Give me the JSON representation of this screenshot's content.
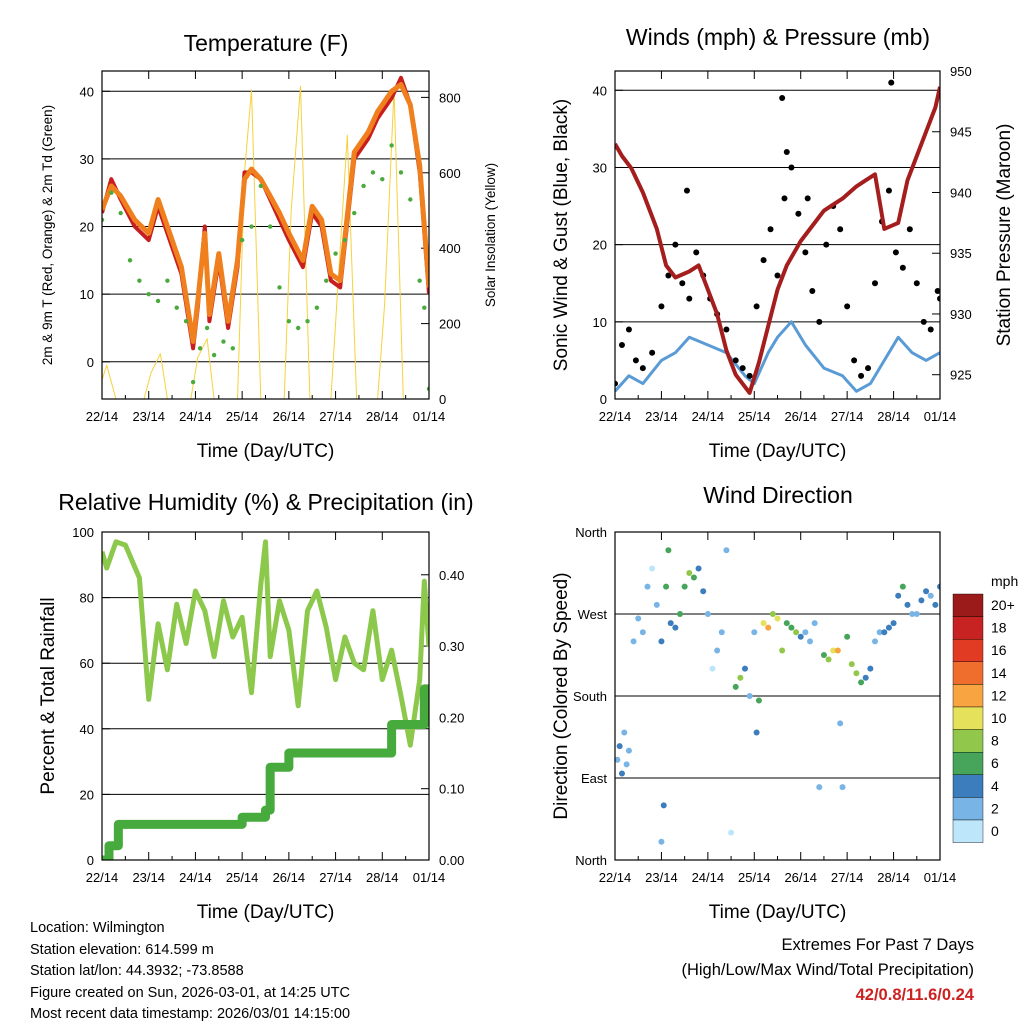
{
  "colors": {
    "temp_red": "#c81e1e",
    "temp_orange": "#f07f1e",
    "dewpoint_green": "#4aaa3c",
    "solar_yellow": "#f5d23c",
    "wind_blue": "#5a9bd5",
    "gust_black": "#000000",
    "pressure_maroon": "#a51e1e",
    "rh_green": "#8cc84b",
    "precip_green": "#46aa3c",
    "extremes_red": "#cc2222"
  },
  "chart_data": [
    {
      "id": "temperature",
      "type": "line",
      "title": "Temperature (F)",
      "xlabel": "Time (Day/UTC)",
      "ylabel": "2m & 9m T (Red, Orange) & 2m Td (Green)",
      "y2label": "Solar Insolation (Yellow)",
      "xticklabels": [
        "22/14",
        "23/14",
        "24/14",
        "25/14",
        "26/14",
        "27/14",
        "28/14",
        "01/14"
      ],
      "xlim": [
        0,
        7
      ],
      "ylim": [
        -5.5,
        43
      ],
      "yticks": [
        0,
        10,
        20,
        30,
        40
      ],
      "y2lim": [
        0,
        870
      ],
      "y2ticks": [
        0,
        200,
        400,
        600,
        800
      ],
      "grid_y": [
        0,
        10,
        20,
        30,
        40
      ],
      "series": [
        {
          "name": "2m T",
          "style": "line",
          "color": "#c81e1e",
          "x": [
            0,
            0.2,
            0.4,
            0.7,
            1.0,
            1.2,
            1.4,
            1.7,
            1.95,
            2.05,
            2.2,
            2.3,
            2.5,
            2.7,
            2.9,
            3.05,
            3.2,
            3.4,
            3.6,
            3.8,
            4.0,
            4.3,
            4.5,
            4.7,
            4.9,
            5.1,
            5.4,
            5.7,
            5.9,
            6.2,
            6.4,
            6.6,
            6.8,
            7.0
          ],
          "values": [
            22,
            27,
            24,
            20,
            18,
            23,
            19,
            13,
            2,
            8,
            20,
            6,
            15,
            5,
            14,
            28,
            28,
            27,
            24,
            21,
            18,
            14,
            22,
            20,
            12,
            11,
            30,
            33,
            36,
            39,
            42,
            38,
            28,
            10
          ]
        },
        {
          "name": "9m T",
          "style": "line",
          "color": "#f07f1e",
          "x": [
            0,
            0.2,
            0.4,
            0.7,
            1.0,
            1.2,
            1.4,
            1.7,
            1.95,
            2.05,
            2.2,
            2.3,
            2.5,
            2.7,
            2.9,
            3.05,
            3.2,
            3.4,
            3.6,
            3.8,
            4.0,
            4.3,
            4.5,
            4.7,
            4.9,
            5.1,
            5.4,
            5.7,
            5.9,
            6.2,
            6.4,
            6.6,
            6.8,
            7.0
          ],
          "values": [
            22.5,
            26,
            24.5,
            21,
            19,
            24,
            20,
            14,
            3,
            9,
            19,
            7,
            16,
            6,
            15,
            27,
            28.5,
            27,
            24.5,
            22,
            19,
            15,
            23,
            21,
            13,
            12,
            31,
            34,
            37,
            40,
            41,
            38,
            29,
            11
          ]
        },
        {
          "name": "2m Td",
          "style": "dots",
          "color": "#4aaa3c",
          "x": [
            0,
            0.2,
            0.4,
            0.6,
            0.8,
            1.0,
            1.2,
            1.4,
            1.6,
            1.8,
            1.95,
            2.1,
            2.25,
            2.4,
            2.6,
            2.8,
            3.0,
            3.2,
            3.4,
            3.6,
            3.8,
            4.0,
            4.2,
            4.4,
            4.6,
            4.8,
            5.0,
            5.2,
            5.4,
            5.6,
            5.8,
            6.0,
            6.2,
            6.4,
            6.6,
            6.8,
            6.9,
            7.0
          ],
          "values": [
            21,
            25,
            22,
            15,
            12,
            10,
            9,
            12,
            8,
            6,
            -3,
            2,
            5,
            1,
            3,
            2,
            18,
            20,
            26,
            20,
            11,
            6,
            5,
            6,
            8,
            12,
            16,
            18,
            22,
            26,
            28,
            27,
            32,
            28,
            24,
            12,
            8,
            -4
          ]
        },
        {
          "name": "Solar Insolation",
          "style": "line",
          "color": "#f5d23c",
          "axis": "y2",
          "x": [
            0,
            0.1,
            0.3,
            0.9,
            1.05,
            1.25,
            1.4,
            1.9,
            2.05,
            2.25,
            2.4,
            2.9,
            3.05,
            3.2,
            3.4,
            3.9,
            4.05,
            4.25,
            4.45,
            4.9,
            5.05,
            5.25,
            5.45,
            5.9,
            6.05,
            6.25,
            6.45,
            7.0
          ],
          "values": [
            50,
            90,
            0,
            0,
            70,
            120,
            0,
            0,
            110,
            160,
            0,
            0,
            600,
            820,
            0,
            0,
            500,
            830,
            0,
            0,
            300,
            700,
            0,
            0,
            250,
            820,
            0,
            0
          ]
        }
      ]
    },
    {
      "id": "winds",
      "type": "scatter",
      "title": "Winds (mph) & Pressure (mb)",
      "xlabel": "Time (Day/UTC)",
      "ylabel": "Sonic Wind & Gust (Blue, Black)",
      "y2label": "Station Pressure (Maroon)",
      "xticklabels": [
        "22/14",
        "23/14",
        "24/14",
        "25/14",
        "26/14",
        "27/14",
        "28/14",
        "01/14"
      ],
      "xlim": [
        0,
        7
      ],
      "ylim": [
        0,
        42.5
      ],
      "yticks": [
        0,
        10,
        20,
        30,
        40
      ],
      "y2lim": [
        923,
        950
      ],
      "y2ticks": [
        925,
        930,
        935,
        940,
        945,
        950
      ],
      "grid_y": [
        10,
        20,
        30,
        40
      ],
      "series": [
        {
          "name": "Sonic Wind",
          "style": "line",
          "color": "#5a9bd5",
          "x": [
            0,
            0.3,
            0.6,
            1.0,
            1.3,
            1.6,
            2.0,
            2.4,
            2.8,
            3.0,
            3.3,
            3.5,
            3.8,
            4.1,
            4.5,
            4.9,
            5.2,
            5.5,
            5.8,
            6.1,
            6.4,
            6.7,
            7.0
          ],
          "values": [
            1,
            3,
            2,
            5,
            6,
            8,
            7,
            6,
            3,
            2,
            6,
            8,
            10,
            7,
            4,
            3,
            1,
            2,
            5,
            8,
            6,
            5,
            6
          ]
        },
        {
          "name": "Gust",
          "style": "dots",
          "color": "#000000",
          "x": [
            0.0,
            0.15,
            0.3,
            0.45,
            0.6,
            0.8,
            1.0,
            1.15,
            1.3,
            1.45,
            1.6,
            1.75,
            1.9,
            2.05,
            2.2,
            2.4,
            2.6,
            2.75,
            2.9,
            3.05,
            3.2,
            3.35,
            3.5,
            3.65,
            3.8,
            3.95,
            4.1,
            4.25,
            4.4,
            4.55,
            4.7,
            4.85,
            5.0,
            5.15,
            5.3,
            5.45,
            5.6,
            5.75,
            5.9,
            6.05,
            6.2,
            6.35,
            6.5,
            6.65,
            6.8,
            6.95,
            7.0,
            3.6,
            4.15,
            5.95,
            1.55,
            3.7
          ],
          "values": [
            2,
            7,
            9,
            5,
            4,
            6,
            12,
            16,
            20,
            15,
            13,
            19,
            16,
            13,
            11,
            9,
            5,
            4,
            3,
            12,
            18,
            22,
            16,
            26,
            30,
            24,
            19,
            14,
            10,
            20,
            25,
            22,
            12,
            5,
            3,
            4,
            15,
            23,
            27,
            19,
            17,
            22,
            15,
            10,
            9,
            14,
            13,
            39,
            26,
            41,
            27,
            32
          ]
        },
        {
          "name": "Station Pressure",
          "style": "line",
          "color": "#a51e1e",
          "axis": "y2",
          "x": [
            0,
            0.15,
            0.35,
            0.6,
            0.9,
            1.1,
            1.3,
            1.6,
            1.8,
            2.0,
            2.2,
            2.4,
            2.6,
            2.9,
            3.1,
            3.3,
            3.5,
            3.7,
            4.0,
            4.3,
            4.5,
            4.7,
            4.9,
            5.2,
            5.4,
            5.6,
            5.8,
            6.1,
            6.3,
            6.5,
            6.7,
            6.9,
            7.0
          ],
          "values": [
            944,
            943,
            942,
            940,
            937,
            934,
            933,
            933.5,
            934,
            932,
            930,
            927,
            925,
            923.5,
            926,
            929,
            932,
            934,
            936,
            937.5,
            938.5,
            939,
            939.5,
            940.5,
            941,
            941.5,
            937,
            937.5,
            941,
            943,
            945,
            947,
            948.7
          ]
        }
      ]
    },
    {
      "id": "humidity",
      "type": "line",
      "title": "Relative Humidity (%) & Precipitation (in)",
      "xlabel": "Time (Day/UTC)",
      "ylabel": "Percent & Total Rainfall",
      "xticklabels": [
        "22/14",
        "23/14",
        "24/14",
        "25/14",
        "26/14",
        "27/14",
        "28/14",
        "01/14"
      ],
      "xlim": [
        0,
        7
      ],
      "ylim": [
        0,
        100
      ],
      "yticks": [
        0,
        20,
        40,
        60,
        80,
        100
      ],
      "y2lim": [
        0,
        0.46
      ],
      "y2ticks": [
        0.0,
        0.1,
        0.2,
        0.3,
        0.4
      ],
      "y2ticklabels": [
        "0.00",
        "0.10",
        "0.20",
        "0.30",
        "0.40"
      ],
      "grid_y": [
        20,
        40,
        60,
        80
      ],
      "series": [
        {
          "name": "Relative Humidity",
          "style": "line",
          "color": "#8cc84b",
          "x": [
            0,
            0.1,
            0.3,
            0.5,
            0.8,
            1.0,
            1.2,
            1.4,
            1.6,
            1.8,
            2.0,
            2.2,
            2.4,
            2.6,
            2.8,
            3.0,
            3.2,
            3.4,
            3.5,
            3.6,
            3.8,
            4.0,
            4.2,
            4.4,
            4.6,
            4.8,
            5.0,
            5.2,
            5.4,
            5.6,
            5.8,
            6.0,
            6.2,
            6.4,
            6.6,
            6.8,
            6.9,
            7.0
          ],
          "values": [
            94,
            89,
            97,
            96,
            86,
            49,
            72,
            58,
            78,
            66,
            82,
            76,
            62,
            79,
            68,
            74,
            51,
            84,
            97,
            62,
            79,
            70,
            47,
            76,
            82,
            71,
            55,
            68,
            60,
            58,
            76,
            55,
            64,
            50,
            35,
            55,
            85,
            65
          ]
        },
        {
          "name": "Total Precipitation",
          "style": "step",
          "color": "#46aa3c",
          "axis": "y2",
          "x": [
            0,
            0.1,
            0.15,
            0.35,
            1.0,
            2.0,
            3.0,
            3.5,
            3.6,
            4.0,
            5.0,
            6.0,
            6.2,
            6.55,
            6.9,
            7.0
          ],
          "values": [
            0.0,
            0.0,
            0.02,
            0.05,
            0.05,
            0.05,
            0.06,
            0.07,
            0.13,
            0.15,
            0.15,
            0.15,
            0.19,
            0.19,
            0.24,
            0.24
          ]
        }
      ]
    },
    {
      "id": "wind_direction",
      "type": "scatter",
      "title": "Wind Direction",
      "xlabel": "Time (Day/UTC)",
      "ylabel": "Direction (Colored By Speed)",
      "xticklabels": [
        "22/14",
        "23/14",
        "24/14",
        "25/14",
        "26/14",
        "27/14",
        "28/14",
        "01/14"
      ],
      "xlim": [
        0,
        7
      ],
      "ylim": [
        0,
        360
      ],
      "yticks": [
        0,
        90,
        180,
        270,
        360
      ],
      "yticklabels": [
        "North",
        "East",
        "South",
        "West",
        "North"
      ],
      "grid_y": [
        90,
        180,
        270
      ],
      "colorbar": {
        "label": "mph",
        "ticklabels": [
          "20+",
          "18",
          "16",
          "14",
          "12",
          "10",
          "8",
          "6",
          "4",
          "2",
          "0"
        ],
        "colors": [
          "#9b1b1b",
          "#c82323",
          "#e13c23",
          "#f06e2d",
          "#f8a541",
          "#e6e15a",
          "#91c84b",
          "#46a55a",
          "#3c7dbe",
          "#78b4e6",
          "#bee6fa"
        ]
      },
      "points": {
        "x": [
          0.05,
          0.1,
          0.15,
          0.2,
          0.25,
          0.3,
          0.4,
          0.5,
          0.6,
          0.7,
          0.8,
          0.9,
          1.0,
          1.0,
          1.05,
          1.1,
          1.15,
          1.2,
          1.3,
          1.4,
          1.5,
          1.6,
          1.7,
          1.8,
          1.9,
          2.0,
          2.1,
          2.2,
          2.3,
          2.4,
          2.5,
          2.6,
          2.7,
          2.8,
          2.9,
          3.0,
          3.05,
          3.1,
          3.2,
          3.3,
          3.4,
          3.5,
          3.6,
          3.7,
          3.8,
          3.9,
          4.0,
          4.1,
          4.2,
          4.3,
          4.4,
          4.5,
          4.6,
          4.7,
          4.8,
          4.85,
          4.9,
          5.0,
          5.1,
          5.2,
          5.3,
          5.4,
          5.5,
          5.6,
          5.7,
          5.8,
          5.9,
          6.0,
          6.1,
          6.2,
          6.3,
          6.4,
          6.5,
          6.6,
          6.7,
          6.8,
          6.9,
          7.0
        ],
        "values": [
          110,
          125,
          95,
          140,
          105,
          120,
          240,
          265,
          250,
          300,
          320,
          280,
          20,
          240,
          60,
          300,
          340,
          260,
          255,
          270,
          300,
          315,
          310,
          320,
          295,
          270,
          210,
          230,
          250,
          340,
          30,
          190,
          200,
          210,
          180,
          250,
          140,
          175,
          260,
          255,
          270,
          265,
          230,
          260,
          255,
          250,
          245,
          250,
          240,
          260,
          80,
          225,
          220,
          230,
          230,
          150,
          80,
          245,
          215,
          205,
          195,
          200,
          210,
          240,
          250,
          250,
          255,
          260,
          290,
          300,
          280,
          270,
          270,
          285,
          295,
          290,
          280,
          300
        ],
        "speeds": [
          3,
          4,
          4,
          3,
          2,
          3,
          2,
          2,
          3,
          2,
          1,
          3,
          3,
          5,
          4,
          6,
          7,
          5,
          5,
          7,
          6,
          8,
          7,
          5,
          4,
          2,
          1,
          2,
          3,
          2,
          1,
          6,
          8,
          5,
          3,
          3,
          4,
          6,
          11,
          12,
          9,
          10,
          8,
          7,
          6,
          8,
          4,
          3,
          2,
          2,
          3,
          7,
          9,
          11,
          12,
          3,
          2,
          6,
          8,
          9,
          7,
          5,
          4,
          3,
          2,
          4,
          5,
          5,
          4,
          6,
          5,
          3,
          2,
          4,
          4,
          3,
          5,
          4
        ]
      }
    }
  ],
  "info": {
    "location": "Location: Wilmington",
    "elevation": "Station elevation: 614.599 m",
    "latlon": "Station lat/lon: 44.3932; -73.8588",
    "created": "Figure created on Sun, 2026-03-01, at 14:25 UTC",
    "latest": "Most recent data timestamp: 2026/03/01 14:15:00"
  },
  "extremes": {
    "line1": "Extremes For Past 7 Days",
    "line2": "(High/Low/Max Wind/Total Precipitation)",
    "values": "42/0.8/11.6/0.24"
  }
}
